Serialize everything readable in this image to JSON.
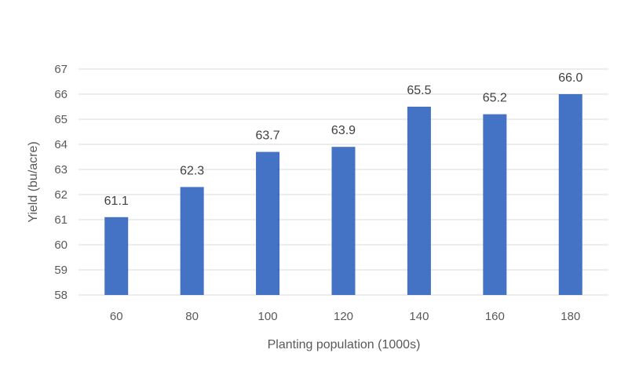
{
  "colors": {
    "bar": "#4472c4",
    "grid": "#d9d9d9",
    "text": "#595959",
    "label": "#404040"
  },
  "chart_data": {
    "type": "bar",
    "title": "",
    "xlabel": "Planting population (1000s)",
    "ylabel": "Yield (bu/acre)",
    "categories": [
      "60",
      "80",
      "100",
      "120",
      "140",
      "160",
      "180"
    ],
    "values": [
      61.1,
      62.3,
      63.7,
      63.9,
      65.5,
      65.2,
      66.0
    ],
    "data_labels": [
      "61.1",
      "62.3",
      "63.7",
      "63.9",
      "65.5",
      "65.2",
      "66.0"
    ],
    "ylim": [
      58,
      67
    ],
    "yticks": [
      58,
      59,
      60,
      61,
      62,
      63,
      64,
      65,
      66,
      67
    ],
    "ytick_labels": [
      "58",
      "59",
      "60",
      "61",
      "62",
      "63",
      "64",
      "65",
      "66",
      "67"
    ],
    "grid": true,
    "legend": "none"
  }
}
